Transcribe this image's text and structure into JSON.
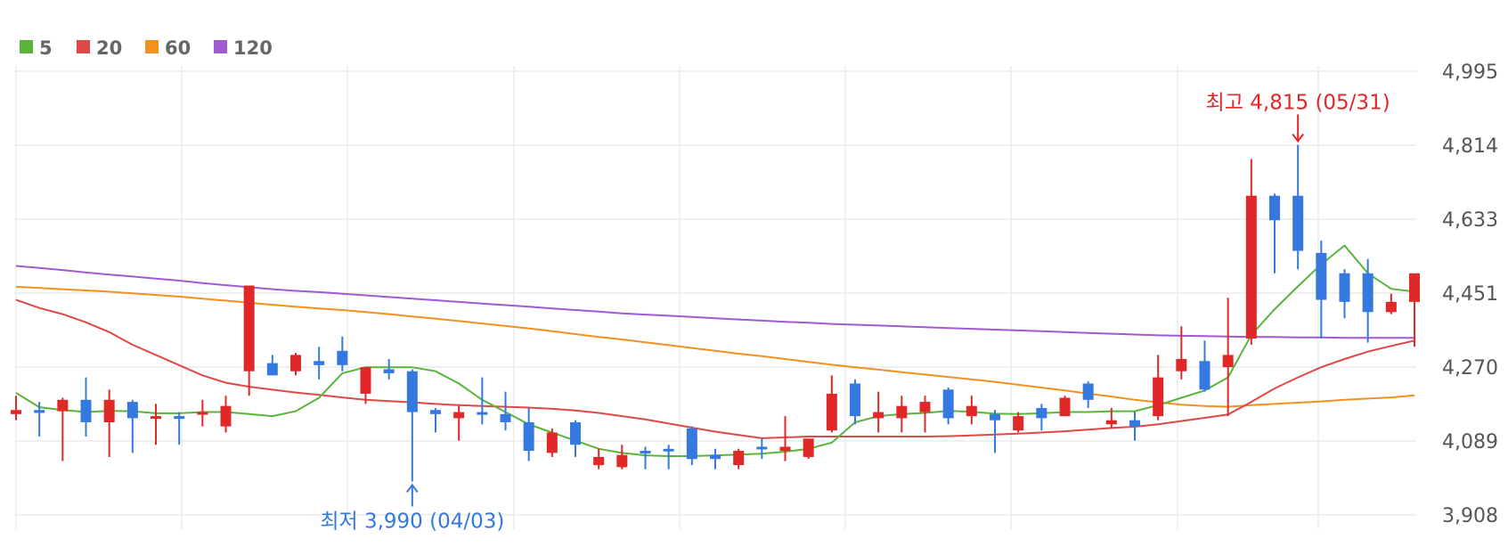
{
  "chart_data": {
    "type": "candlestick",
    "legend": [
      {
        "label": "5",
        "color": "#5ab43c"
      },
      {
        "label": "20",
        "color": "#e04848"
      },
      {
        "label": "60",
        "color": "#f39020"
      },
      {
        "label": "120",
        "color": "#a05ad2"
      }
    ],
    "y_ticks": [
      "4,995",
      "4,814",
      "4,633",
      "4,451",
      "4,270",
      "4,089",
      "3,908"
    ],
    "ylim": [
      3908,
      4995
    ],
    "up_color": "#e02828",
    "down_color": "#3579e0",
    "candles": [
      [
        4155,
        4200,
        4140,
        4165
      ],
      [
        4165,
        4185,
        4100,
        4158
      ],
      [
        4162,
        4195,
        4040,
        4190
      ],
      [
        4190,
        4245,
        4100,
        4135
      ],
      [
        4135,
        4215,
        4050,
        4190
      ],
      [
        4185,
        4190,
        4060,
        4145
      ],
      [
        4145,
        4180,
        4080,
        4150
      ],
      [
        4150,
        4160,
        4080,
        4148
      ],
      [
        4160,
        4190,
        4125,
        4160
      ],
      [
        4125,
        4200,
        4110,
        4175
      ],
      [
        4260,
        4470,
        4200,
        4470
      ],
      [
        4280,
        4300,
        4250,
        4250
      ],
      [
        4260,
        4305,
        4250,
        4300
      ],
      [
        4285,
        4320,
        4240,
        4275
      ],
      [
        4310,
        4345,
        4260,
        4275
      ],
      [
        4205,
        4270,
        4180,
        4270
      ],
      [
        4265,
        4290,
        4240,
        4255
      ],
      [
        4260,
        4265,
        3990,
        4160
      ],
      [
        4165,
        4170,
        4110,
        4155
      ],
      [
        4145,
        4175,
        4090,
        4160
      ],
      [
        4160,
        4245,
        4130,
        4155
      ],
      [
        4155,
        4210,
        4115,
        4135
      ],
      [
        4135,
        4170,
        4040,
        4065
      ],
      [
        4060,
        4120,
        4050,
        4110
      ],
      [
        4135,
        4140,
        4050,
        4080
      ],
      [
        4030,
        4070,
        4020,
        4050
      ],
      [
        4025,
        4080,
        4020,
        4055
      ],
      [
        4065,
        4075,
        4020,
        4060
      ],
      [
        4070,
        4080,
        4020,
        4065
      ],
      [
        4120,
        4125,
        4030,
        4045
      ],
      [
        4055,
        4070,
        4020,
        4045
      ],
      [
        4030,
        4070,
        4020,
        4065
      ],
      [
        4075,
        4095,
        4045,
        4070
      ],
      [
        4065,
        4150,
        4040,
        4075
      ],
      [
        4050,
        4090,
        4045,
        4095
      ],
      [
        4115,
        4250,
        4110,
        4205
      ],
      [
        4230,
        4240,
        4130,
        4150
      ],
      [
        4145,
        4210,
        4110,
        4160
      ],
      [
        4145,
        4200,
        4110,
        4175
      ],
      [
        4160,
        4200,
        4110,
        4185
      ],
      [
        4215,
        4220,
        4130,
        4145
      ],
      [
        4150,
        4200,
        4130,
        4175
      ],
      [
        4155,
        4165,
        4060,
        4140
      ],
      [
        4115,
        4160,
        4110,
        4150
      ],
      [
        4170,
        4180,
        4115,
        4145
      ],
      [
        4150,
        4200,
        4150,
        4195
      ],
      [
        4230,
        4235,
        4170,
        4190
      ],
      [
        4130,
        4170,
        4120,
        4140
      ],
      [
        4140,
        4160,
        4090,
        4125
      ],
      [
        4150,
        4300,
        4140,
        4245
      ],
      [
        4260,
        4370,
        4240,
        4290
      ],
      [
        4285,
        4335,
        4210,
        4215
      ],
      [
        4270,
        4440,
        4150,
        4300
      ],
      [
        4340,
        4780,
        4325,
        4690
      ],
      [
        4690,
        4695,
        4500,
        4630
      ],
      [
        4690,
        4815,
        4510,
        4555
      ],
      [
        4550,
        4580,
        4340,
        4435
      ],
      [
        4500,
        4510,
        4390,
        4430
      ],
      [
        4500,
        4535,
        4330,
        4405
      ],
      [
        4405,
        4450,
        4400,
        4430
      ],
      [
        4430,
        4500,
        4320,
        4500
      ]
    ],
    "ma5": [
      4207,
      4172,
      4165,
      4160,
      4163,
      4162,
      4157,
      4157,
      4160,
      4160,
      4155,
      4150,
      4162,
      4195,
      4255,
      4270,
      4270,
      4270,
      4260,
      4230,
      4190,
      4160,
      4130,
      4110,
      4090,
      4070,
      4060,
      4054,
      4052,
      4052,
      4054,
      4056,
      4058,
      4063,
      4070,
      4085,
      4135,
      4150,
      4155,
      4158,
      4163,
      4161,
      4156,
      4155,
      4157,
      4160,
      4160,
      4162,
      4162,
      4177,
      4195,
      4213,
      4245,
      4349,
      4412,
      4468,
      4522,
      4568,
      4500,
      4462,
      4455
    ],
    "ma20": [
      4435,
      4415,
      4400,
      4380,
      4356,
      4325,
      4300,
      4275,
      4250,
      4232,
      4222,
      4215,
      4208,
      4202,
      4196,
      4190,
      4187,
      4184,
      4180,
      4177,
      4175,
      4173,
      4171,
      4168,
      4164,
      4158,
      4150,
      4142,
      4132,
      4122,
      4112,
      4104,
      4096,
      4098,
      4100,
      4100,
      4100,
      4100,
      4100,
      4100,
      4101,
      4103,
      4105,
      4107,
      4110,
      4113,
      4117,
      4121,
      4124,
      4130,
      4138,
      4146,
      4154,
      4185,
      4218,
      4245,
      4270,
      4290,
      4308,
      4322,
      4335
    ],
    "ma60": [
      4467,
      4464,
      4461,
      4458,
      4455,
      4451,
      4447,
      4443,
      4438,
      4433,
      4428,
      4423,
      4418,
      4414,
      4410,
      4405,
      4400,
      4394,
      4389,
      4383,
      4377,
      4371,
      4365,
      4358,
      4351,
      4344,
      4338,
      4331,
      4324,
      4317,
      4310,
      4303,
      4297,
      4290,
      4283,
      4276,
      4270,
      4264,
      4258,
      4252,
      4246,
      4240,
      4234,
      4227,
      4220,
      4213,
      4205,
      4198,
      4190,
      4184,
      4178,
      4175,
      4173,
      4177,
      4180,
      4183,
      4186,
      4190,
      4193,
      4196,
      4201
    ],
    "ma120": [
      4518,
      4513,
      4508,
      4502,
      4497,
      4492,
      4487,
      4482,
      4476,
      4471,
      4466,
      4461,
      4457,
      4454,
      4450,
      4446,
      4442,
      4438,
      4434,
      4430,
      4426,
      4422,
      4418,
      4414,
      4410,
      4406,
      4402,
      4399,
      4396,
      4393,
      4390,
      4387,
      4384,
      4381,
      4379,
      4376,
      4374,
      4372,
      4370,
      4368,
      4366,
      4364,
      4362,
      4360,
      4358,
      4356,
      4354,
      4352,
      4350,
      4348,
      4347,
      4346,
      4345,
      4344,
      4344,
      4343,
      4343,
      4342,
      4342,
      4342,
      4342
    ],
    "annotations": {
      "high": {
        "label": "최고 4,815 (05/31)",
        "value": 4815,
        "color": "#e02828"
      },
      "low": {
        "label": "최저 3,990 (04/03)",
        "value": 3990,
        "color": "#3579e0"
      }
    },
    "grid": true
  }
}
